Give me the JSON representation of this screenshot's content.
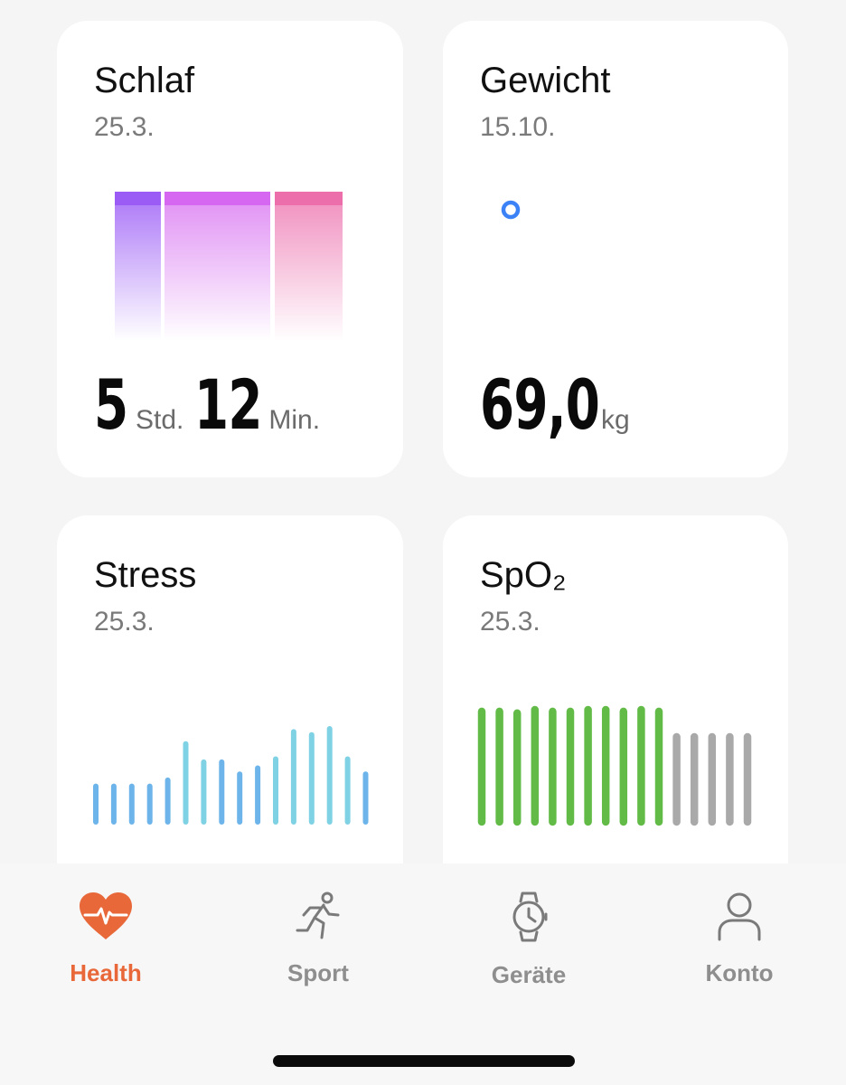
{
  "cards": {
    "sleep": {
      "title": "Schlaf",
      "date": "25.3.",
      "hours": "5",
      "hours_unit": "Std.",
      "minutes": "12",
      "minutes_unit": "Min.",
      "colors": [
        "#9b5cf6",
        "#d567f0",
        "#ec6fac"
      ]
    },
    "weight": {
      "title": "Gewicht",
      "date": "15.10.",
      "value": "69,0",
      "unit": "kg",
      "point_color": "#3b82f6"
    },
    "stress": {
      "title": "Stress",
      "date": "25.3.",
      "bar_values": [
        4,
        4,
        4,
        4,
        6,
        18,
        12,
        12,
        8,
        10,
        13,
        22,
        21,
        23,
        13,
        8
      ],
      "bar_colors": [
        "#6cb4ea",
        "#6cb4ea",
        "#6cb4ea",
        "#6cb4ea",
        "#6cb4ea",
        "#7fd1e4",
        "#7fd1e4",
        "#6cb4ea",
        "#6cb4ea",
        "#6cb4ea",
        "#7fd1e4",
        "#7fd1e4",
        "#7fd1e4",
        "#7fd1e4",
        "#7fd1e4",
        "#6cb4ea"
      ]
    },
    "spo2": {
      "title": "SpO₂",
      "date": "25.3.",
      "bar_values": [
        31,
        31,
        30,
        32,
        31,
        31,
        32,
        32,
        31,
        32,
        31,
        16,
        16,
        16,
        16,
        16
      ],
      "bar_colors": [
        "#62bb47",
        "#62bb47",
        "#62bb47",
        "#62bb47",
        "#62bb47",
        "#62bb47",
        "#62bb47",
        "#62bb47",
        "#62bb47",
        "#62bb47",
        "#62bb47",
        "#a9a9a9",
        "#a9a9a9",
        "#a9a9a9",
        "#a9a9a9",
        "#a9a9a9"
      ]
    }
  },
  "nav": {
    "items": [
      {
        "label": "Health",
        "icon": "heart-pulse-icon",
        "active": true
      },
      {
        "label": "Sport",
        "icon": "running-person-icon",
        "active": false
      },
      {
        "label": "Geräte",
        "icon": "watch-icon",
        "active": false
      },
      {
        "label": "Konto",
        "icon": "person-icon",
        "active": false
      }
    ],
    "active_color": "#e8683a",
    "inactive_color": "#8e8e8e"
  }
}
